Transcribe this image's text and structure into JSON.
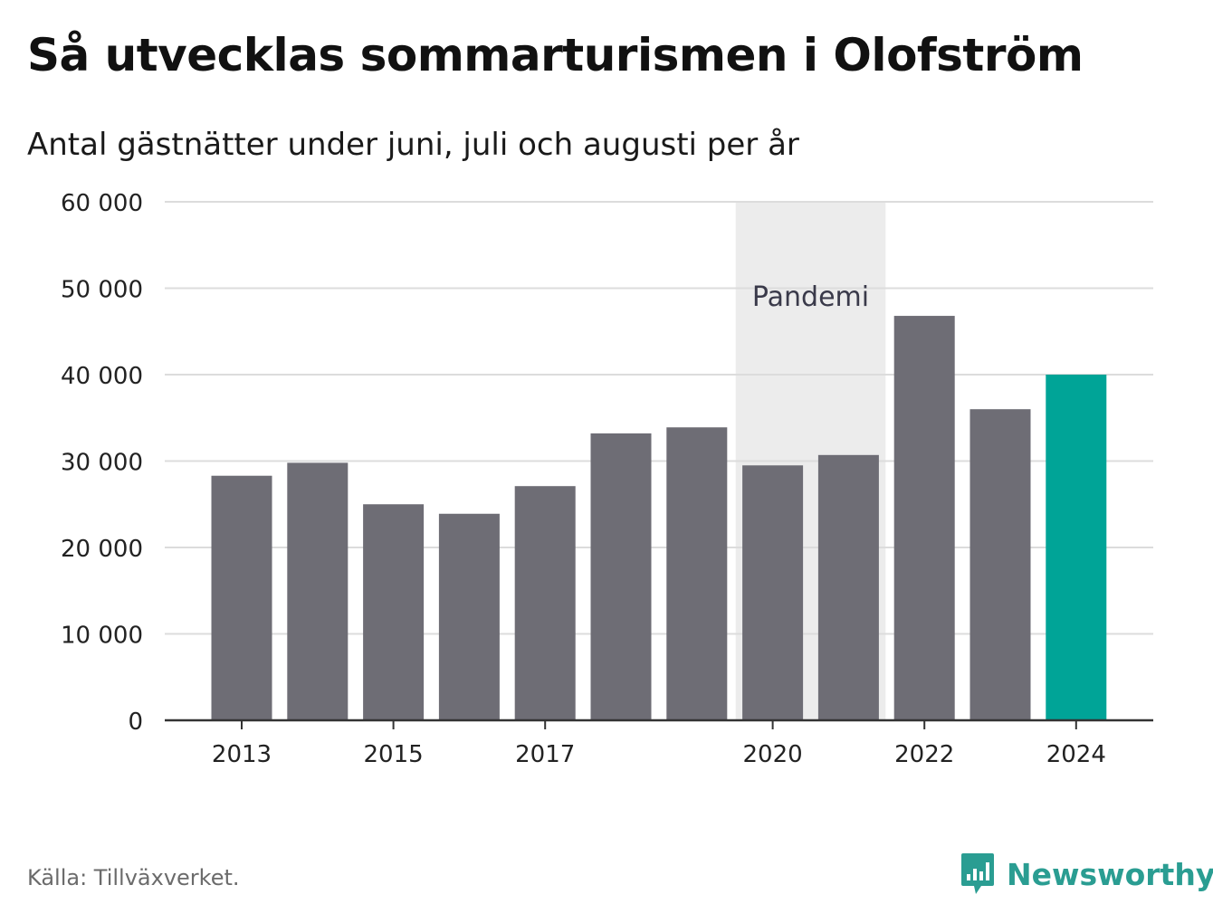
{
  "title": "Så utvecklas sommarturismen i Olofström",
  "subtitle": "Antal gästnätter under juni, juli och augusti per år",
  "source": "Källa: Tillväxverket.",
  "brand": {
    "name": "Newsworthy",
    "logo_icon": "bar-chart-speech-bubble-icon",
    "color": "#2a9d92"
  },
  "chart_data": {
    "type": "bar",
    "categories": [
      "2013",
      "2014",
      "2015",
      "2016",
      "2017",
      "2018",
      "2019",
      "2020",
      "2021",
      "2022",
      "2023",
      "2024"
    ],
    "values": [
      28300,
      29800,
      25000,
      23900,
      27100,
      33200,
      33900,
      29500,
      30700,
      46800,
      36000,
      40000
    ],
    "x_tick_labels": [
      "2013",
      "2015",
      "2017",
      "2020",
      "2022",
      "2024"
    ],
    "y_ticks": [
      0,
      10000,
      20000,
      30000,
      40000,
      50000,
      60000
    ],
    "y_tick_labels": [
      "0",
      "10 000",
      "20 000",
      "30 000",
      "40 000",
      "50 000",
      "60 000"
    ],
    "ylim": [
      0,
      60000
    ],
    "grid": true,
    "bar_color": "#6e6d75",
    "highlight": {
      "category": "2024",
      "color": "#00a497"
    },
    "shaded_region": {
      "from": "2020",
      "to": "2021",
      "label": "Pandemi",
      "color": "#ececec"
    }
  }
}
